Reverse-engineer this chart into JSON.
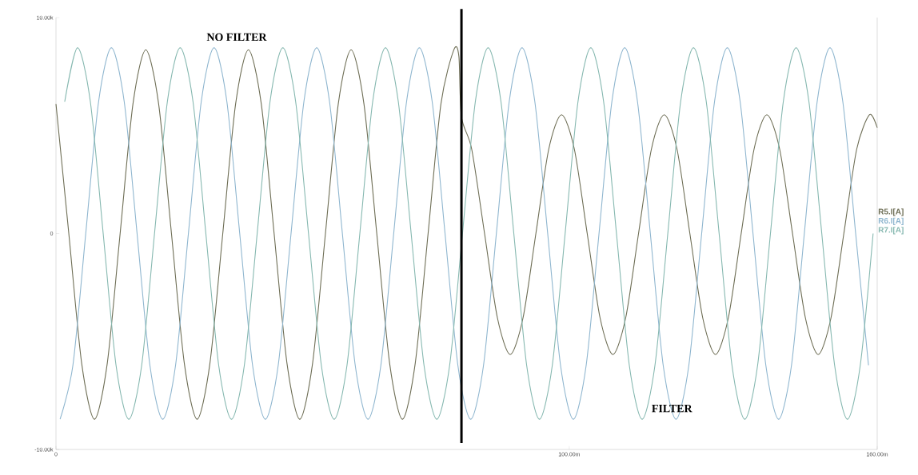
{
  "chart_data": {
    "type": "line",
    "annotations": [
      "NO FILTER",
      "FILTER"
    ],
    "xlim": [
      0,
      160
    ],
    "ylim": [
      -10000,
      10000
    ],
    "xticks": [
      0,
      {
        "value": 100,
        "label": "100.00m"
      },
      {
        "value": 160,
        "label": "160.00m"
      }
    ],
    "yticks": [
      {
        "value": -10000,
        "label": "-10.00k"
      },
      0,
      {
        "value": 10000,
        "label": "10.00k"
      }
    ],
    "legend": "right",
    "marker": "none",
    "line_style": "solid",
    "ref_lines": [
      {
        "axis": "x",
        "value": 79,
        "color": "#000000"
      }
    ],
    "series": [
      {
        "name": "R5.I[A]",
        "color": "#6e6e55",
        "x": [
          0,
          2.5,
          5,
          7.5,
          10,
          12.5,
          15,
          17.5,
          20,
          22.5,
          25,
          27.5,
          30,
          32.5,
          35,
          37.5,
          40,
          42.5,
          45,
          47.5,
          50,
          52.5,
          55,
          57.5,
          60,
          62.5,
          65,
          67.5,
          70,
          72.5,
          75,
          77.5,
          78.5,
          79,
          81,
          83.5,
          86,
          88.5,
          91,
          93.5,
          96,
          98.5,
          101,
          103.5,
          106,
          108.5,
          111,
          113.5,
          116,
          118.5,
          121,
          123.5,
          126,
          128.5,
          131,
          133.5,
          136,
          138.5,
          141,
          143.5,
          146,
          148.5,
          151,
          153.5,
          156,
          158.5,
          160
        ],
        "values": [
          6000,
          0,
          -6000,
          -8600,
          -6000,
          0,
          6000,
          8500,
          6000,
          0,
          -6000,
          -8600,
          -6000,
          0,
          6000,
          8500,
          6000,
          0,
          -6000,
          -8600,
          -6000,
          0,
          6000,
          8500,
          6000,
          0,
          -6000,
          -8600,
          -6000,
          0,
          6000,
          8500,
          8200,
          5400,
          3900,
          0,
          -3900,
          -5600,
          -3900,
          0,
          3900,
          5500,
          3900,
          0,
          -3900,
          -5600,
          -3900,
          0,
          3900,
          5500,
          3900,
          0,
          -3900,
          -5600,
          -3900,
          0,
          3900,
          5500,
          3900,
          0,
          -3900,
          -5600,
          -3900,
          0,
          3900,
          5500,
          4900
        ]
      },
      {
        "name": "R6.I[A]",
        "color": "#8fb6cf",
        "x": [
          0.8,
          3.3,
          5.8,
          8.3,
          10.8,
          13.3,
          15.8,
          18.3,
          20.8,
          23.3,
          25.8,
          28.3,
          30.8,
          33.3,
          35.8,
          38.3,
          40.8,
          43.3,
          45.8,
          48.3,
          50.8,
          53.3,
          55.8,
          58.3,
          60.8,
          63.3,
          65.8,
          68.3,
          70.8,
          73.3,
          75.8,
          78.3,
          80.8,
          83.3,
          85.8,
          88.3,
          90.8,
          93.3,
          95.8,
          98.3,
          100.8,
          103.3,
          105.8,
          108.3,
          110.8,
          113.3,
          115.8,
          118.3,
          120.8,
          123.3,
          125.8,
          128.3,
          130.8,
          133.3,
          135.8,
          138.3,
          140.8,
          143.3,
          145.8,
          148.3,
          150.8,
          153.3,
          155.8,
          158.3
        ],
        "values": [
          -8600,
          -6100,
          0,
          6100,
          8600,
          6100,
          0,
          -6100,
          -8600,
          -6100,
          0,
          6100,
          8600,
          6100,
          0,
          -6100,
          -8600,
          -6100,
          0,
          6100,
          8600,
          6100,
          0,
          -6100,
          -8600,
          -6100,
          0,
          6100,
          8600,
          6100,
          0,
          -6100,
          -8600,
          -6100,
          0,
          6100,
          8600,
          6100,
          0,
          -6100,
          -8600,
          -6100,
          0,
          6100,
          8600,
          6100,
          0,
          -6100,
          -8600,
          -6100,
          0,
          6100,
          8600,
          6100,
          0,
          -6100,
          -8600,
          -6100,
          0,
          6100,
          8600,
          6100,
          0,
          -6100
        ]
      },
      {
        "name": "R7.I[A]",
        "color": "#86b8b0",
        "x": [
          1.7,
          4.2,
          6.7,
          9.2,
          11.7,
          14.2,
          16.7,
          19.2,
          21.7,
          24.2,
          26.7,
          29.2,
          31.7,
          34.2,
          36.7,
          39.2,
          41.7,
          44.2,
          46.7,
          49.2,
          51.7,
          54.2,
          56.7,
          59.2,
          61.7,
          64.2,
          66.7,
          69.2,
          71.7,
          74.2,
          76.7,
          79.2,
          81.7,
          84.2,
          86.7,
          89.2,
          91.7,
          94.2,
          96.7,
          99.2,
          101.7,
          104.2,
          106.7,
          109.2,
          111.7,
          114.2,
          116.7,
          119.2,
          121.7,
          124.2,
          126.7,
          129.2,
          131.7,
          134.2,
          136.7,
          139.2,
          141.7,
          144.2,
          146.7,
          149.2,
          151.7,
          154.2,
          156.7,
          159.2
        ],
        "values": [
          6100,
          8600,
          6100,
          0,
          -6100,
          -8600,
          -6100,
          0,
          6100,
          8600,
          6100,
          0,
          -6100,
          -8600,
          -6100,
          0,
          6100,
          8600,
          6100,
          0,
          -6100,
          -8600,
          -6100,
          0,
          6100,
          8600,
          6100,
          0,
          -6100,
          -8600,
          -6100,
          0,
          6100,
          8600,
          6100,
          0,
          -6100,
          -8600,
          -6100,
          0,
          6100,
          8600,
          6100,
          0,
          -6100,
          -8600,
          -6100,
          0,
          6100,
          8600,
          6100,
          0,
          -6100,
          -8600,
          -6100,
          0,
          6100,
          8600,
          6100,
          0,
          -6100,
          -8600,
          -6100,
          0
        ]
      }
    ]
  }
}
